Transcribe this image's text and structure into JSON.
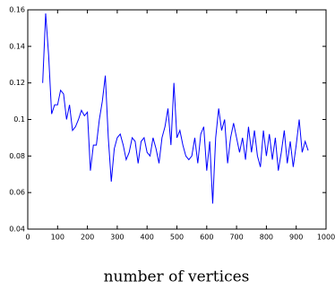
{
  "chart_data": {
    "type": "line",
    "x_label": "number of vertices",
    "x": [
      50,
      60,
      70,
      80,
      90,
      100,
      110,
      120,
      130,
      140,
      150,
      160,
      170,
      180,
      190,
      200,
      210,
      220,
      230,
      240,
      250,
      260,
      270,
      280,
      290,
      300,
      310,
      320,
      330,
      340,
      350,
      360,
      370,
      380,
      390,
      400,
      410,
      420,
      430,
      440,
      450,
      460,
      470,
      480,
      490,
      500,
      510,
      520,
      530,
      540,
      550,
      560,
      570,
      580,
      590,
      600,
      610,
      620,
      630,
      640,
      650,
      660,
      670,
      680,
      690,
      700,
      710,
      720,
      730,
      740,
      750,
      760,
      770,
      780,
      790,
      800,
      810,
      820,
      830,
      840,
      850,
      860,
      870,
      880,
      890,
      900,
      910,
      920,
      930,
      940
    ],
    "series": [
      {
        "color": "#0000ff",
        "values": [
          0.12,
          0.158,
          0.135,
          0.103,
          0.108,
          0.108,
          0.116,
          0.114,
          0.1,
          0.108,
          0.094,
          0.096,
          0.1,
          0.105,
          0.102,
          0.104,
          0.072,
          0.086,
          0.086,
          0.1,
          0.11,
          0.124,
          0.09,
          0.066,
          0.084,
          0.09,
          0.092,
          0.086,
          0.078,
          0.082,
          0.09,
          0.088,
          0.076,
          0.088,
          0.09,
          0.082,
          0.08,
          0.09,
          0.084,
          0.076,
          0.09,
          0.096,
          0.106,
          0.086,
          0.12,
          0.09,
          0.094,
          0.086,
          0.08,
          0.078,
          0.08,
          0.09,
          0.076,
          0.092,
          0.096,
          0.072,
          0.088,
          0.054,
          0.09,
          0.106,
          0.094,
          0.1,
          0.076,
          0.09,
          0.098,
          0.09,
          0.082,
          0.09,
          0.078,
          0.096,
          0.082,
          0.094,
          0.08,
          0.074,
          0.094,
          0.08,
          0.092,
          0.078,
          0.09,
          0.072,
          0.082,
          0.094,
          0.076,
          0.088,
          0.074,
          0.086,
          0.1,
          0.082,
          0.088,
          0.083
        ]
      }
    ],
    "xlim": [
      0,
      1000
    ],
    "xticks": [
      0,
      100,
      200,
      300,
      400,
      500,
      600,
      700,
      800,
      900,
      1000
    ],
    "ylim": [
      0.04,
      0.16
    ],
    "yticks": [
      0.04,
      0.06,
      0.08,
      0.1,
      0.12,
      0.14,
      0.16
    ]
  }
}
